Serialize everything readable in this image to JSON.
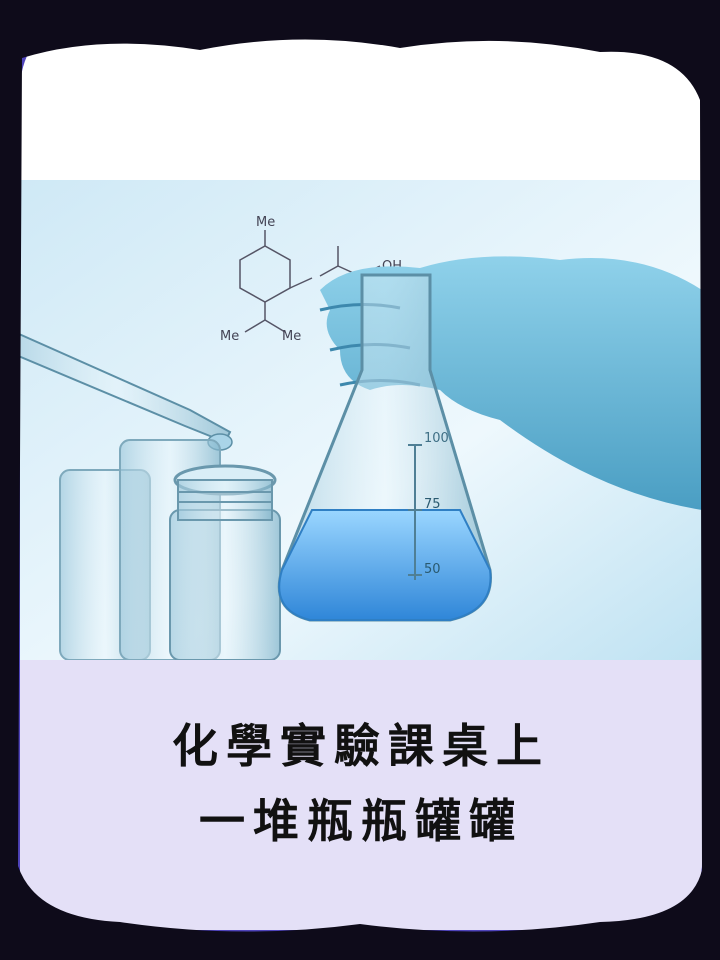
{
  "title": {
    "line1": "化學實驗課桌上",
    "line2": "一堆瓶瓶罐罐"
  },
  "flask_marks": [
    "100",
    "75",
    "50"
  ],
  "molecule_labels": {
    "me_top": "Me",
    "oh": "OH",
    "me_bottom": "Me",
    "me_left": "Me"
  },
  "colors": {
    "frame": "#1a1530",
    "frame_purple": "#6a5cff",
    "caption_bg": "#e4e0f7",
    "liquid": "#4aa0ec",
    "glove": "#7ec8e6"
  }
}
